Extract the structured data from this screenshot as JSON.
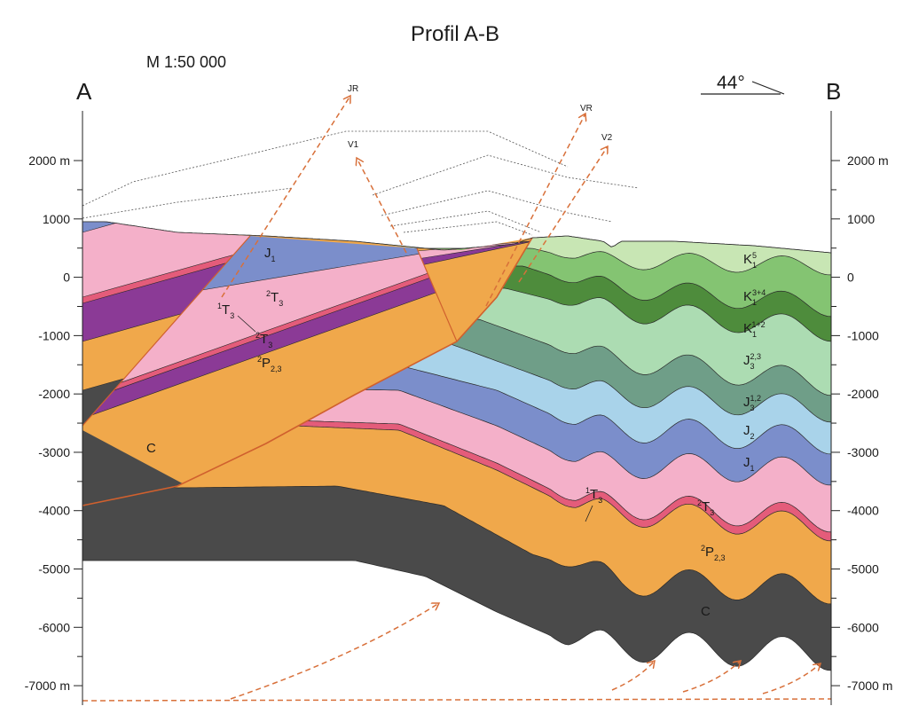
{
  "header": {
    "title": "Profil A-B",
    "scale": "M 1:50 000"
  },
  "profile": {
    "start": "A",
    "end": "B",
    "dip": "44°"
  },
  "faults": [
    "JR",
    "V1",
    "VR",
    "V2"
  ],
  "depth_axis": {
    "ticks": [
      {
        "value": 2000,
        "label": "2000 m"
      },
      1000,
      0,
      -1000,
      -2000,
      -3000,
      -4000,
      -5000,
      -6000,
      {
        "value": -7000,
        "label": "-7000 m"
      }
    ]
  },
  "layers": [
    {
      "base": "J",
      "sub": "1"
    },
    {
      "pre": "2",
      "base": "T",
      "sub": "3"
    },
    {
      "pre": "1",
      "base": "T",
      "sub": "3"
    },
    {
      "pre": "2",
      "base": "T",
      "sub": "3"
    },
    {
      "pre": "2",
      "base": "P",
      "sub": "2,3"
    },
    {
      "base": "C"
    },
    {
      "base": "K",
      "sub": "1",
      "sup": "5"
    },
    {
      "base": "K",
      "sub": "1",
      "sup": "3+4"
    },
    {
      "base": "K",
      "sub": "1",
      "sup": "1+2"
    },
    {
      "base": "J",
      "sub": "3",
      "sup": "2,3"
    },
    {
      "base": "J",
      "sub": "3",
      "sup": "1,2"
    },
    {
      "base": "J",
      "sub": "2"
    },
    {
      "base": "J",
      "sub": "1"
    },
    {
      "pre": "1",
      "base": "T",
      "sub": "3"
    },
    {
      "pre": "2",
      "base": "T",
      "sub": "3"
    },
    {
      "pre": "2",
      "base": "P",
      "sub": "2,3"
    },
    {
      "base": "C"
    }
  ]
}
